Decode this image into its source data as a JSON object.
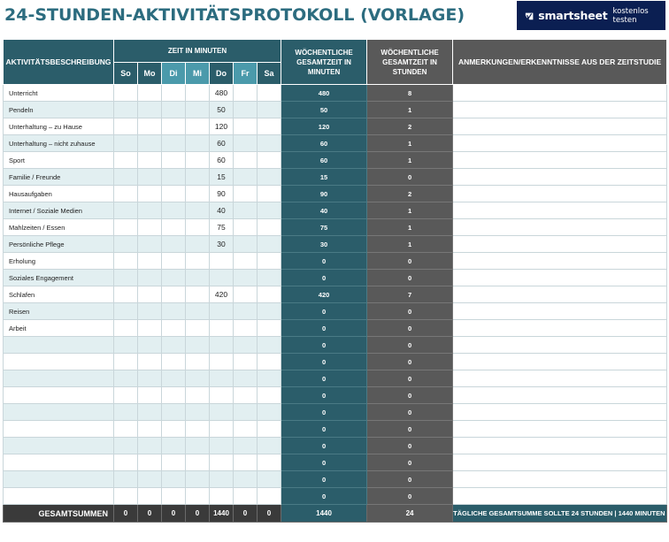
{
  "title": "24-STUNDEN-AKTIVITÄTSPROTOKOLL (VORLAGE)",
  "brand": {
    "name": "smartsheet",
    "cta": "kostenlos testen",
    "brand_color": "#0b1f52"
  },
  "colors": {
    "title": "#2c6c7f",
    "header_teal": "#2b5d6a",
    "header_teal_light": "#4b9aab",
    "header_grey": "#595959",
    "row_alt": "#e2eff1",
    "footer": "#3a3a3a"
  },
  "headers": {
    "description": "AKTIVITÄTSBESCHREIBUNG",
    "time_group": "ZEIT IN MINUTEN",
    "days": [
      "So",
      "Mo",
      "Di",
      "Mi",
      "Do",
      "Fr",
      "Sa"
    ],
    "weekly_minutes": "WÖCHENTLICHE GESAMTZEIT IN MINUTEN",
    "weekly_hours": "WÖCHENTLICHE GESAMTZEIT IN STUNDEN",
    "notes": "ANMERKUNGEN/ERKENNTNISSE AUS DER ZEITSTUDIE"
  },
  "rows": [
    {
      "activity": "Unterricht",
      "days": [
        "",
        "",
        "",
        "",
        "480",
        "",
        ""
      ],
      "weekly_minutes": "480",
      "weekly_hours": "8",
      "note": ""
    },
    {
      "activity": "Pendeln",
      "days": [
        "",
        "",
        "",
        "",
        "50",
        "",
        ""
      ],
      "weekly_minutes": "50",
      "weekly_hours": "1",
      "note": ""
    },
    {
      "activity": "Unterhaltung – zu Hause",
      "days": [
        "",
        "",
        "",
        "",
        "120",
        "",
        ""
      ],
      "weekly_minutes": "120",
      "weekly_hours": "2",
      "note": ""
    },
    {
      "activity": "Unterhaltung – nicht zuhause",
      "days": [
        "",
        "",
        "",
        "",
        "60",
        "",
        ""
      ],
      "weekly_minutes": "60",
      "weekly_hours": "1",
      "note": ""
    },
    {
      "activity": "Sport",
      "days": [
        "",
        "",
        "",
        "",
        "60",
        "",
        ""
      ],
      "weekly_minutes": "60",
      "weekly_hours": "1",
      "note": ""
    },
    {
      "activity": "Familie / Freunde",
      "days": [
        "",
        "",
        "",
        "",
        "15",
        "",
        ""
      ],
      "weekly_minutes": "15",
      "weekly_hours": "0",
      "note": ""
    },
    {
      "activity": "Hausaufgaben",
      "days": [
        "",
        "",
        "",
        "",
        "90",
        "",
        ""
      ],
      "weekly_minutes": "90",
      "weekly_hours": "2",
      "note": ""
    },
    {
      "activity": "Internet / Soziale Medien",
      "days": [
        "",
        "",
        "",
        "",
        "40",
        "",
        ""
      ],
      "weekly_minutes": "40",
      "weekly_hours": "1",
      "note": ""
    },
    {
      "activity": "Mahlzeiten / Essen",
      "days": [
        "",
        "",
        "",
        "",
        "75",
        "",
        ""
      ],
      "weekly_minutes": "75",
      "weekly_hours": "1",
      "note": ""
    },
    {
      "activity": "Persönliche Pflege",
      "days": [
        "",
        "",
        "",
        "",
        "30",
        "",
        ""
      ],
      "weekly_minutes": "30",
      "weekly_hours": "1",
      "note": ""
    },
    {
      "activity": "Erholung",
      "days": [
        "",
        "",
        "",
        "",
        "",
        "",
        ""
      ],
      "weekly_minutes": "0",
      "weekly_hours": "0",
      "note": ""
    },
    {
      "activity": "Soziales Engagement",
      "days": [
        "",
        "",
        "",
        "",
        "",
        "",
        ""
      ],
      "weekly_minutes": "0",
      "weekly_hours": "0",
      "note": ""
    },
    {
      "activity": "Schlafen",
      "days": [
        "",
        "",
        "",
        "",
        "420",
        "",
        ""
      ],
      "weekly_minutes": "420",
      "weekly_hours": "7",
      "note": ""
    },
    {
      "activity": "Reisen",
      "days": [
        "",
        "",
        "",
        "",
        "",
        "",
        ""
      ],
      "weekly_minutes": "0",
      "weekly_hours": "0",
      "note": ""
    },
    {
      "activity": "Arbeit",
      "days": [
        "",
        "",
        "",
        "",
        "",
        "",
        ""
      ],
      "weekly_minutes": "0",
      "weekly_hours": "0",
      "note": ""
    },
    {
      "activity": "",
      "days": [
        "",
        "",
        "",
        "",
        "",
        "",
        ""
      ],
      "weekly_minutes": "0",
      "weekly_hours": "0",
      "note": ""
    },
    {
      "activity": "",
      "days": [
        "",
        "",
        "",
        "",
        "",
        "",
        ""
      ],
      "weekly_minutes": "0",
      "weekly_hours": "0",
      "note": ""
    },
    {
      "activity": "",
      "days": [
        "",
        "",
        "",
        "",
        "",
        "",
        ""
      ],
      "weekly_minutes": "0",
      "weekly_hours": "0",
      "note": ""
    },
    {
      "activity": "",
      "days": [
        "",
        "",
        "",
        "",
        "",
        "",
        ""
      ],
      "weekly_minutes": "0",
      "weekly_hours": "0",
      "note": ""
    },
    {
      "activity": "",
      "days": [
        "",
        "",
        "",
        "",
        "",
        "",
        ""
      ],
      "weekly_minutes": "0",
      "weekly_hours": "0",
      "note": ""
    },
    {
      "activity": "",
      "days": [
        "",
        "",
        "",
        "",
        "",
        "",
        ""
      ],
      "weekly_minutes": "0",
      "weekly_hours": "0",
      "note": ""
    },
    {
      "activity": "",
      "days": [
        "",
        "",
        "",
        "",
        "",
        "",
        ""
      ],
      "weekly_minutes": "0",
      "weekly_hours": "0",
      "note": ""
    },
    {
      "activity": "",
      "days": [
        "",
        "",
        "",
        "",
        "",
        "",
        ""
      ],
      "weekly_minutes": "0",
      "weekly_hours": "0",
      "note": ""
    },
    {
      "activity": "",
      "days": [
        "",
        "",
        "",
        "",
        "",
        "",
        ""
      ],
      "weekly_minutes": "0",
      "weekly_hours": "0",
      "note": ""
    },
    {
      "activity": "",
      "days": [
        "",
        "",
        "",
        "",
        "",
        "",
        ""
      ],
      "weekly_minutes": "0",
      "weekly_hours": "0",
      "note": ""
    }
  ],
  "footer": {
    "label": "GESAMTSUMMEN",
    "days": [
      "0",
      "0",
      "0",
      "0",
      "1440",
      "0",
      "0"
    ],
    "weekly_minutes": "1440",
    "weekly_hours": "24",
    "note": "TÄGLICHE GESAMTSUMME SOLLTE 24 STUNDEN | 1440 MINUTEN ERGEBEN"
  }
}
